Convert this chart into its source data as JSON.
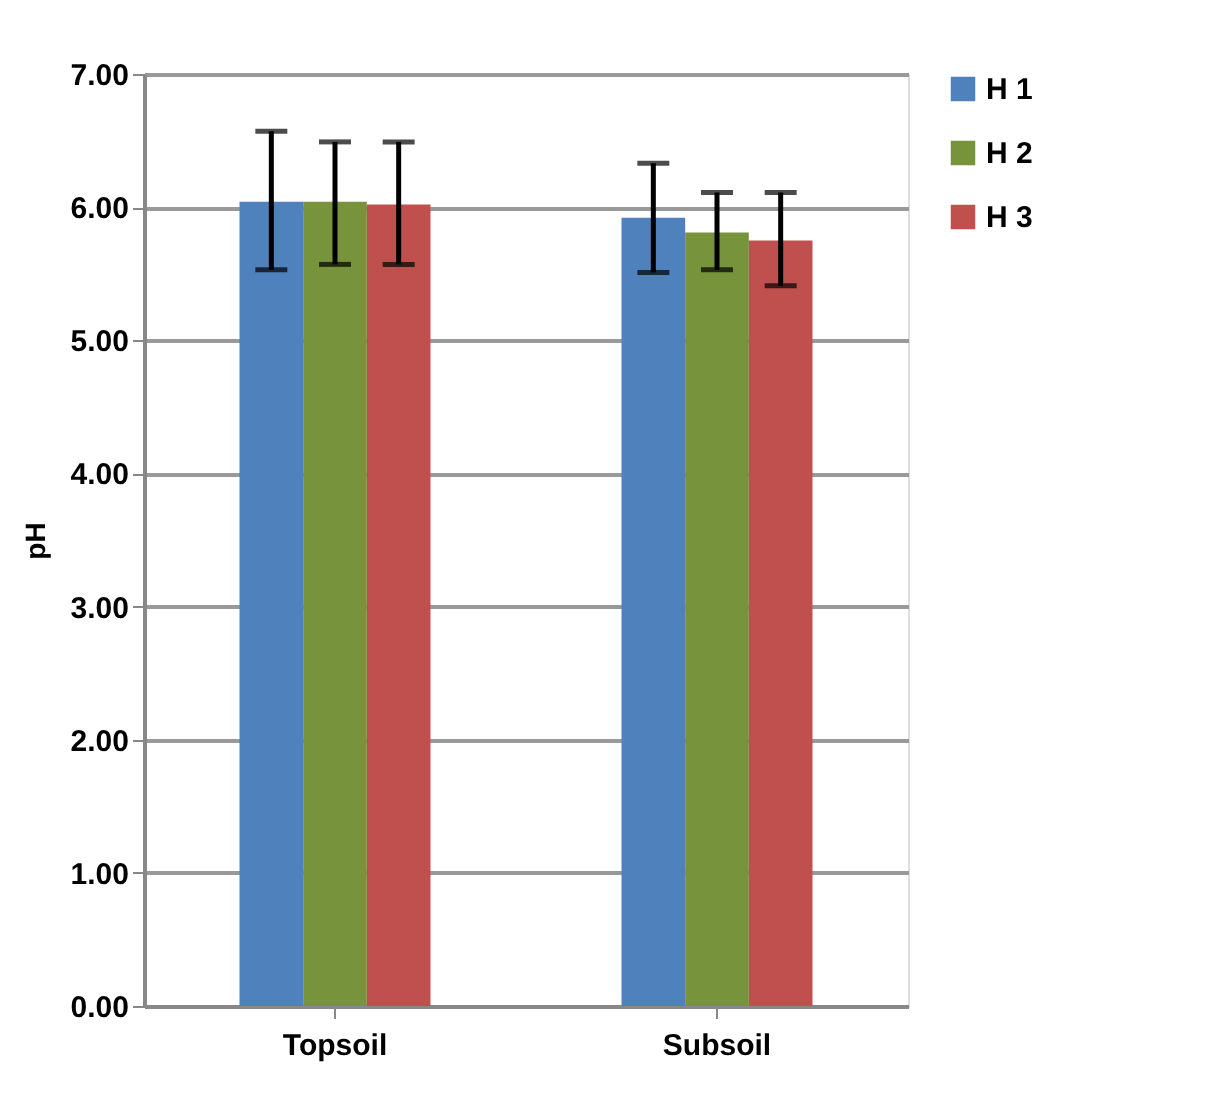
{
  "chart_data": {
    "type": "bar",
    "ylabel": "pH",
    "categories": [
      "Topsoil",
      "Subsoil"
    ],
    "series": [
      {
        "name": "H 1",
        "color": "#4f81bd",
        "values": [
          6.04,
          5.92
        ],
        "errors": [
          [
            5.53,
            6.57
          ],
          [
            5.51,
            6.33
          ]
        ]
      },
      {
        "name": "H 2",
        "color": "#77933c",
        "values": [
          6.04,
          5.81
        ],
        "errors": [
          [
            5.57,
            6.49
          ],
          [
            5.53,
            6.11
          ]
        ]
      },
      {
        "name": "H 3",
        "color": "#c0504d",
        "values": [
          6.02,
          5.75
        ],
        "errors": [
          [
            5.57,
            6.49
          ],
          [
            5.41,
            6.11
          ]
        ]
      }
    ],
    "ylim": [
      0,
      7
    ],
    "yticks": [
      {
        "value": 0,
        "label": "0.00"
      },
      {
        "value": 1,
        "label": "1.00"
      },
      {
        "value": 2,
        "label": "2.00"
      },
      {
        "value": 3,
        "label": "3.00"
      },
      {
        "value": 4,
        "label": "4.00"
      },
      {
        "value": 5,
        "label": "5.00"
      },
      {
        "value": 6,
        "label": "6.00"
      },
      {
        "value": 7,
        "label": "7.00"
      }
    ],
    "grid": "y",
    "legend": "right"
  }
}
